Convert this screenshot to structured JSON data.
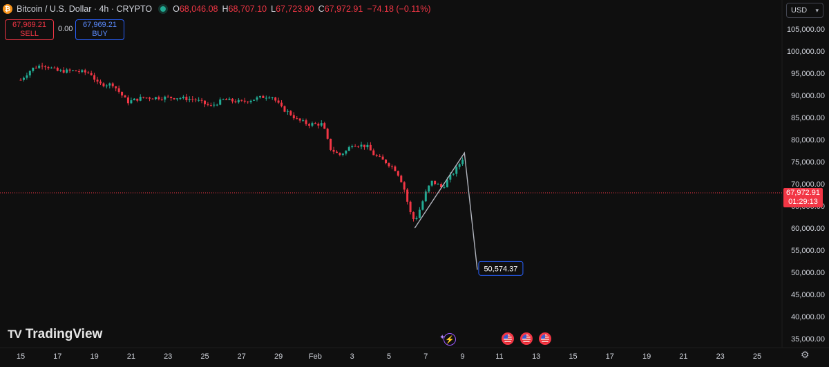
{
  "header": {
    "coin_glyph": "₿",
    "title": "Bitcoin / U.S. Dollar · 4h · CRYPTO",
    "o_label": "O",
    "o_value": "68,046.08",
    "h_label": "H",
    "h_value": "68,707.10",
    "l_label": "L",
    "l_value": "67,723.90",
    "c_label": "C",
    "c_value": "67,972.91",
    "change": "−74.18 (−0.11%)"
  },
  "trade": {
    "sell_price": "67,969.21",
    "sell_label": "SELL",
    "spread": "0.00",
    "buy_price": "67,969.21",
    "buy_label": "BUY"
  },
  "currency": {
    "label": "USD"
  },
  "last_price": {
    "price": "67,972.91",
    "countdown": "01:29:13"
  },
  "branding": {
    "logo_mark": "TV",
    "name": "TradingView"
  },
  "colors": {
    "up": "#22ab94",
    "down": "#f23645",
    "background": "#0f0f0f",
    "drawing": "#b2b5be"
  },
  "chart_data": {
    "type": "candlestick",
    "interval": "4h",
    "y_axis": {
      "ticks": [
        105000,
        100000,
        95000,
        90000,
        85000,
        80000,
        75000,
        70000,
        65000,
        60000,
        55000,
        50000,
        45000,
        40000,
        35000
      ],
      "tick_labels": [
        "105,000.00",
        "100,000.00",
        "95,000.00",
        "90,000.00",
        "85,000.00",
        "80,000.00",
        "75,000.00",
        "70,000.00",
        "65,000.00",
        "60,000.00",
        "55,000.00",
        "50,000.00",
        "45,000.00",
        "40,000.00",
        "35,000.00"
      ]
    },
    "x_axis": {
      "ticks": [
        15,
        17,
        19,
        21,
        23,
        25,
        27,
        29,
        31,
        33,
        35,
        37,
        39,
        41,
        43,
        45,
        47,
        49,
        51,
        53,
        55
      ],
      "tick_labels": [
        "15",
        "17",
        "19",
        "21",
        "23",
        "25",
        "27",
        "29",
        "Feb",
        "3",
        "5",
        "7",
        "9",
        "11",
        "13",
        "15",
        "17",
        "19",
        "21",
        "23",
        "25"
      ]
    },
    "x_unit": "day index (Jan 15 = 15, Feb 1 = 32)",
    "price_path": [
      [
        15.0,
        93500
      ],
      [
        15.6,
        96000
      ],
      [
        16.2,
        97000
      ],
      [
        17.0,
        95500
      ],
      [
        18.0,
        95500
      ],
      [
        18.8,
        95000
      ],
      [
        19.2,
        92500
      ],
      [
        20.0,
        92500
      ],
      [
        20.8,
        88500
      ],
      [
        21.6,
        89500
      ],
      [
        22.5,
        89500
      ],
      [
        23.5,
        89500
      ],
      [
        24.5,
        89000
      ],
      [
        25.3,
        87500
      ],
      [
        26.0,
        89000
      ],
      [
        27.0,
        88500
      ],
      [
        28.0,
        89500
      ],
      [
        28.6,
        90000
      ],
      [
        29.2,
        87000
      ],
      [
        29.6,
        86000
      ],
      [
        30.0,
        84500
      ],
      [
        30.6,
        83500
      ],
      [
        31.4,
        83500
      ],
      [
        31.8,
        78000
      ],
      [
        32.3,
        76500
      ],
      [
        32.7,
        77500
      ],
      [
        33.0,
        79000
      ],
      [
        33.8,
        78500
      ],
      [
        34.2,
        76500
      ],
      [
        34.8,
        75000
      ],
      [
        35.3,
        73500
      ],
      [
        35.6,
        71500
      ],
      [
        35.9,
        68000
      ],
      [
        36.1,
        64000
      ],
      [
        36.4,
        61500
      ],
      [
        36.7,
        64500
      ],
      [
        37.0,
        68000
      ],
      [
        37.3,
        70500
      ],
      [
        37.6,
        70000
      ],
      [
        37.9,
        69000
      ],
      [
        38.2,
        71000
      ],
      [
        38.6,
        73000
      ],
      [
        38.9,
        75000
      ],
      [
        39.1,
        76500
      ]
    ],
    "drawing_path": [
      {
        "x": 36.4,
        "y": 60000
      },
      {
        "x": 39.1,
        "y": 77000
      },
      {
        "x": 39.8,
        "y": 50574.37
      }
    ],
    "target_label": "50,574.37",
    "last_price": 67972.91
  }
}
